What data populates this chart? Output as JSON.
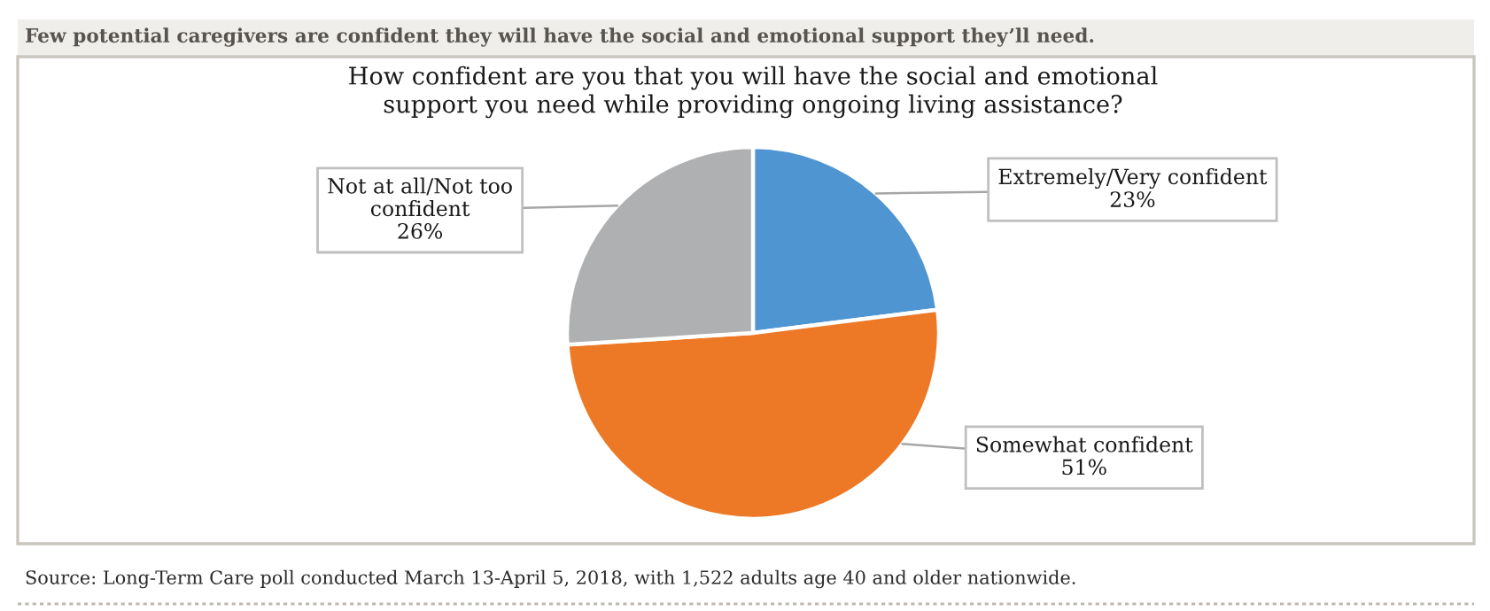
{
  "chart_data": {
    "type": "pie",
    "subtitle": "Few potential caregivers are confident they will have the social and emotional support they’ll need.",
    "title": "How confident are you that you will have the social and emotional support you need while providing ongoing living assistance?",
    "categories": [
      "Extremely/Very confident",
      "Somewhat confident",
      "Not at all/Not too confident"
    ],
    "values": [
      23,
      51,
      26
    ],
    "value_labels": [
      "23%",
      "51%",
      "26%"
    ],
    "colors": [
      "#4e95d2",
      "#ed7825",
      "#afb0b2"
    ],
    "annotations": [
      "Source: Long-Term Care poll conducted March 13-April 5, 2018, with 1,522 adults age 40 and older nationwide."
    ]
  }
}
